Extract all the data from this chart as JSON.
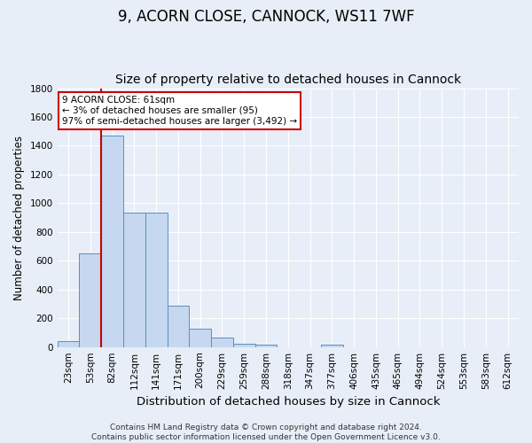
{
  "title": "9, ACORN CLOSE, CANNOCK, WS11 7WF",
  "subtitle": "Size of property relative to detached houses in Cannock",
  "xlabel": "Distribution of detached houses by size in Cannock",
  "ylabel": "Number of detached properties",
  "categories": [
    "23sqm",
    "53sqm",
    "82sqm",
    "112sqm",
    "141sqm",
    "171sqm",
    "200sqm",
    "229sqm",
    "259sqm",
    "288sqm",
    "318sqm",
    "347sqm",
    "377sqm",
    "406sqm",
    "435sqm",
    "465sqm",
    "494sqm",
    "524sqm",
    "553sqm",
    "583sqm",
    "612sqm"
  ],
  "values": [
    40,
    650,
    1470,
    935,
    935,
    290,
    125,
    65,
    25,
    15,
    0,
    0,
    15,
    0,
    0,
    0,
    0,
    0,
    0,
    0,
    0
  ],
  "bar_color": "#c5d8f0",
  "bar_edge_color": "#5a8fc0",
  "vline_color": "#cc0000",
  "annotation_line1": "9 ACORN CLOSE: 61sqm",
  "annotation_line2": "← 3% of detached houses are smaller (95)",
  "annotation_line3": "97% of semi-detached houses are larger (3,492) →",
  "annotation_box_color": "#ffffff",
  "annotation_box_edge": "#cc0000",
  "ylim": [
    0,
    1800
  ],
  "yticks": [
    0,
    200,
    400,
    600,
    800,
    1000,
    1200,
    1400,
    1600,
    1800
  ],
  "background_color": "#e8eef7",
  "grid_color": "#ffffff",
  "footer": "Contains HM Land Registry data © Crown copyright and database right 2024.\nContains public sector information licensed under the Open Government Licence v3.0.",
  "title_fontsize": 12,
  "subtitle_fontsize": 10,
  "xlabel_fontsize": 9.5,
  "ylabel_fontsize": 8.5,
  "tick_fontsize": 7.5,
  "footer_fontsize": 6.5
}
